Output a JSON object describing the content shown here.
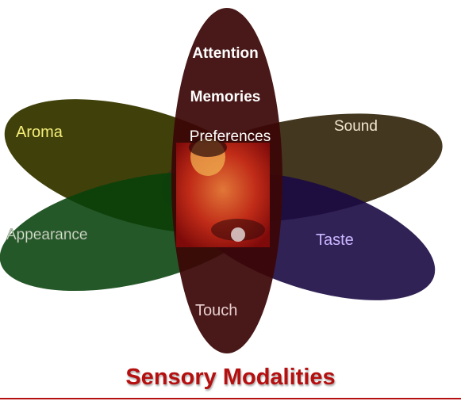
{
  "diagram": {
    "title": "Sensory Modalities",
    "petals": {
      "aroma": {
        "label": "Aroma",
        "color": "#3a3a02"
      },
      "sound": {
        "label": "Sound",
        "color": "#3d3118"
      },
      "appearance": {
        "label": "Appearance",
        "color": "#07410a"
      },
      "taste": {
        "label": "Taste",
        "color": "#1b0a44"
      },
      "touch": {
        "label": "Touch"
      },
      "vertical": {
        "color": "#3b0606"
      }
    },
    "center_labels": {
      "attention": "Attention",
      "memories": "Memories",
      "preferences": "Preferences"
    },
    "colors": {
      "title": "#b50f0f",
      "aroma_label": "#f5ef7a",
      "sound_label": "#f2e6cf",
      "appearance_label": "#cdf5c0",
      "taste_label": "#c9b6ff",
      "touch_label": "#e8cfcf",
      "center_label": "#ffffff",
      "photo_tint": "#d81818",
      "rule": "#b50f0f"
    }
  }
}
